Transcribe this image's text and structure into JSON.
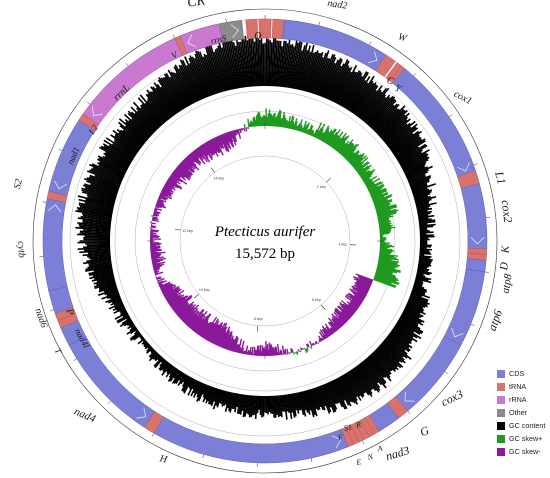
{
  "center": {
    "species": "Ptecticus aurifer",
    "length": "15,572 bp"
  },
  "ring_scale": {
    "ticks": [
      "2 kbp",
      "4 kbp",
      "6 kbp",
      "8 kbp",
      "10 kbp",
      "12 kbp",
      "14 kbp"
    ]
  },
  "legend": [
    {
      "label": "CDS",
      "color": "#7b7fd6"
    },
    {
      "label": "tRNA",
      "color": "#d8726e"
    },
    {
      "label": "rRNA",
      "color": "#c97ad0"
    },
    {
      "label": "Other",
      "color": "#8a8a8a"
    },
    {
      "label": "GC content",
      "color": "#000000"
    },
    {
      "label": "GC skew+",
      "color": "#1f9a1f"
    },
    {
      "label": "GC skew-",
      "color": "#8b1a9a"
    }
  ],
  "features": [
    {
      "name": "CR",
      "type": "Other",
      "strand": "+"
    },
    {
      "name": "I",
      "type": "tRNA",
      "strand": "+"
    },
    {
      "name": "Q",
      "type": "tRNA",
      "strand": "-"
    },
    {
      "name": "M",
      "type": "tRNA",
      "strand": "+"
    },
    {
      "name": "nad2",
      "type": "CDS",
      "strand": "+"
    },
    {
      "name": "W",
      "type": "tRNA",
      "strand": "+"
    },
    {
      "name": "C",
      "type": "tRNA",
      "strand": "-"
    },
    {
      "name": "Y",
      "type": "tRNA",
      "strand": "-"
    },
    {
      "name": "cox1",
      "type": "CDS",
      "strand": "+"
    },
    {
      "name": "L1",
      "type": "tRNA",
      "strand": "+"
    },
    {
      "name": "cox2",
      "type": "CDS",
      "strand": "+"
    },
    {
      "name": "K",
      "type": "tRNA",
      "strand": "+"
    },
    {
      "name": "D",
      "type": "tRNA",
      "strand": "+"
    },
    {
      "name": "atp8",
      "type": "CDS",
      "strand": "+"
    },
    {
      "name": "atp6",
      "type": "CDS",
      "strand": "+"
    },
    {
      "name": "cox3",
      "type": "CDS",
      "strand": "+"
    },
    {
      "name": "G",
      "type": "tRNA",
      "strand": "+"
    },
    {
      "name": "nad3",
      "type": "CDS",
      "strand": "+"
    },
    {
      "name": "A",
      "type": "tRNA",
      "strand": "+"
    },
    {
      "name": "R",
      "type": "tRNA",
      "strand": "+"
    },
    {
      "name": "N",
      "type": "tRNA",
      "strand": "+"
    },
    {
      "name": "S1",
      "type": "tRNA",
      "strand": "+"
    },
    {
      "name": "E",
      "type": "tRNA",
      "strand": "+"
    },
    {
      "name": "F",
      "type": "tRNA",
      "strand": "-"
    },
    {
      "name": "nad5",
      "type": "CDS",
      "strand": "-"
    },
    {
      "name": "H",
      "type": "tRNA",
      "strand": "-"
    },
    {
      "name": "nad4",
      "type": "CDS",
      "strand": "-"
    },
    {
      "name": "nad4l",
      "type": "CDS",
      "strand": "-"
    },
    {
      "name": "T",
      "type": "tRNA",
      "strand": "+"
    },
    {
      "name": "P",
      "type": "tRNA",
      "strand": "-"
    },
    {
      "name": "nad6",
      "type": "CDS",
      "strand": "+"
    },
    {
      "name": "cytb",
      "type": "CDS",
      "strand": "+"
    },
    {
      "name": "S2",
      "type": "tRNA",
      "strand": "+"
    },
    {
      "name": "nad1",
      "type": "CDS",
      "strand": "-"
    },
    {
      "name": "L2",
      "type": "tRNA",
      "strand": "-"
    },
    {
      "name": "rrnL",
      "type": "rRNA",
      "strand": "-"
    },
    {
      "name": "V",
      "type": "tRNA",
      "strand": "-"
    },
    {
      "name": "rrnS",
      "type": "rRNA",
      "strand": "-"
    }
  ]
}
